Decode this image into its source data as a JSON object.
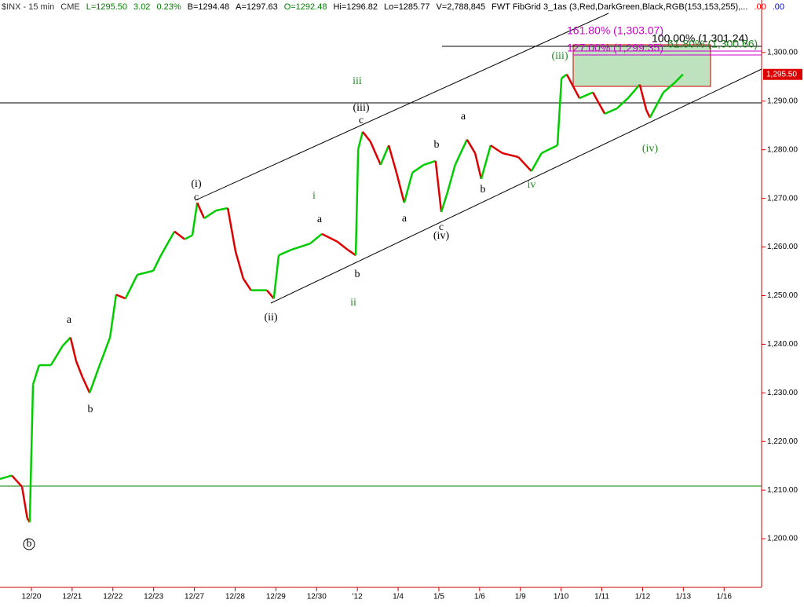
{
  "chart_data": {
    "type": "line",
    "header": [
      {
        "text": "$INX - 15 min",
        "color": "#333333"
      },
      {
        "text": "CME",
        "color": "#333333"
      },
      {
        "text": "L=1295.50",
        "color": "#008000"
      },
      {
        "text": "3.02",
        "color": "#008000"
      },
      {
        "text": "0.23%",
        "color": "#008000"
      },
      {
        "text": "B=1294.48",
        "color": "#000000"
      },
      {
        "text": "A=1297.63",
        "color": "#000000"
      },
      {
        "text": "O=1292.48",
        "color": "#008000"
      },
      {
        "text": "Hi=1296.82",
        "color": "#000000"
      },
      {
        "text": "Lo=1285.77",
        "color": "#000000"
      },
      {
        "text": "V=2,788,845",
        "color": "#000000"
      },
      {
        "text": "FWT FibGrid 3_1as (3,Red,DarkGreen,Black,RGB(153,153,255),...",
        "color": "#000000"
      },
      {
        "text": ".00",
        "color": "#ff0000"
      },
      {
        "text": ".00",
        "color": "#0000ff"
      }
    ],
    "x": [
      -0.77,
      -0.48,
      -0.23,
      -0.1,
      -0.04,
      0.04,
      0.19,
      0.48,
      0.77,
      0.96,
      1.1,
      1.25,
      1.43,
      1.64,
      1.93,
      2.08,
      2.31,
      2.6,
      2.99,
      3.18,
      3.51,
      3.76,
      3.95,
      4.07,
      4.24,
      4.53,
      4.82,
      5.01,
      5.2,
      5.39,
      5.78,
      5.95,
      6.07,
      6.4,
      6.84,
      7.13,
      7.51,
      7.75,
      7.96,
      8.02,
      8.13,
      8.32,
      8.57,
      8.77,
      8.96,
      9.15,
      9.35,
      9.63,
      9.92,
      10.06,
      10.21,
      10.4,
      10.69,
      10.89,
      11.04,
      11.27,
      11.56,
      11.95,
      12.27,
      12.52,
      12.91,
      13.01,
      13.14,
      13.45,
      13.78,
      14.07,
      14.37,
      14.64,
      14.93,
      15.09,
      15.18,
      15.51,
      15.8,
      15.99
    ],
    "series": [
      {
        "name": "$INX",
        "up_color": "#00cc00",
        "down_color": "#dd0000",
        "values": [
          1212.3,
          1213,
          1210.7,
          1204.2,
          1203.4,
          1231.7,
          1235.7,
          1235.7,
          1239.7,
          1241.4,
          1236.5,
          1233.3,
          1230,
          1234.9,
          1241.4,
          1250.2,
          1249.4,
          1254.3,
          1255.1,
          1258.3,
          1263.2,
          1261.6,
          1262.4,
          1269.1,
          1265.9,
          1267.5,
          1268,
          1259.1,
          1253.5,
          1251.1,
          1251.1,
          1249.4,
          1258.3,
          1259.5,
          1260.7,
          1262.7,
          1261.1,
          1259.5,
          1258.3,
          1280.1,
          1283.7,
          1281.7,
          1276.9,
          1280.9,
          1275.3,
          1269.1,
          1275.3,
          1276.9,
          1277.7,
          1267.2,
          1271.2,
          1276.9,
          1282.1,
          1279.3,
          1274,
          1280.9,
          1279.3,
          1278.5,
          1275.6,
          1279.3,
          1280.9,
          1294.7,
          1295.5,
          1290.6,
          1291.8,
          1287.4,
          1288.5,
          1290.6,
          1293.4,
          1288.2,
          1286.6,
          1291.8,
          1293.9,
          1295.5
        ]
      }
    ],
    "last_price": {
      "value": 1295.5,
      "label": "1,295.50"
    },
    "xlim": [
      -0.77,
      17.92
    ],
    "xticks": [
      {
        "value": 0,
        "label": "12/20"
      },
      {
        "value": 1,
        "label": "12/21"
      },
      {
        "value": 2,
        "label": "12/22"
      },
      {
        "value": 3,
        "label": "12/23"
      },
      {
        "value": 4,
        "label": "12/27"
      },
      {
        "value": 5,
        "label": "12/28"
      },
      {
        "value": 6,
        "label": "12/29"
      },
      {
        "value": 7,
        "label": "12/30"
      },
      {
        "value": 8,
        "label": "'12"
      },
      {
        "value": 9,
        "label": "1/4"
      },
      {
        "value": 10,
        "label": "1/5"
      },
      {
        "value": 11,
        "label": "1/6"
      },
      {
        "value": 12,
        "label": "1/9"
      },
      {
        "value": 13,
        "label": "1/10"
      },
      {
        "value": 14,
        "label": "1/11"
      },
      {
        "value": 15,
        "label": "1/12"
      },
      {
        "value": 16,
        "label": "1/13"
      },
      {
        "value": 17,
        "label": "1/16"
      }
    ],
    "ylim": [
      1190,
      1310.8
    ],
    "yticks": [
      {
        "value": 1200,
        "label": "1,200.00"
      },
      {
        "value": 1210,
        "label": "1,210.00"
      },
      {
        "value": 1220,
        "label": "1,220.00"
      },
      {
        "value": 1230,
        "label": "1,230.00"
      },
      {
        "value": 1240,
        "label": "1,240.00"
      },
      {
        "value": 1250,
        "label": "1,250.00"
      },
      {
        "value": 1260,
        "label": "1,260.00"
      },
      {
        "value": 1270,
        "label": "1,270.00"
      },
      {
        "value": 1280,
        "label": "1,280.00"
      },
      {
        "value": 1290,
        "label": "1,290.00"
      },
      {
        "value": 1300,
        "label": "1,300.00"
      }
    ],
    "fib_labels": [
      {
        "text": "161.80% (1,303.07)",
        "color": "#cc00cc"
      },
      {
        "text": "100.00% (1,301.24)",
        "color": "#000000"
      },
      {
        "text": "61.80% (1,300.66)",
        "color": "#228b22"
      },
      {
        "text": "127.00% (1,299.35)",
        "color": "#cc00cc"
      }
    ],
    "wave_labels": [
      {
        "text": "(i)",
        "color": "#000000"
      },
      {
        "text": "c",
        "color": "#000000"
      },
      {
        "text": "(ii)",
        "color": "#000000"
      },
      {
        "text": "(iii)",
        "color": "#000000"
      },
      {
        "text": "c",
        "color": "#000000"
      },
      {
        "text": "(iv)",
        "color": "#000000"
      },
      {
        "text": "c",
        "color": "#000000"
      },
      {
        "text": "(iii)",
        "color": "#228b22"
      },
      {
        "text": "(iv)",
        "color": "#228b22"
      },
      {
        "text": "iii",
        "color": "#228b22"
      },
      {
        "text": "i",
        "color": "#228b22"
      },
      {
        "text": "ii",
        "color": "#228b22"
      },
      {
        "text": "iv",
        "color": "#228b22"
      },
      {
        "text": "a",
        "color": "#000000"
      },
      {
        "text": "b",
        "color": "#000000"
      },
      {
        "text": "a",
        "color": "#000000"
      },
      {
        "text": "b",
        "color": "#000000"
      },
      {
        "text": "a",
        "color": "#000000"
      },
      {
        "text": "b",
        "color": "#000000"
      },
      {
        "text": "a",
        "color": "#000000"
      },
      {
        "text": "b",
        "color": "#000000"
      },
      {
        "text": "b",
        "color": "#000000"
      }
    ]
  }
}
